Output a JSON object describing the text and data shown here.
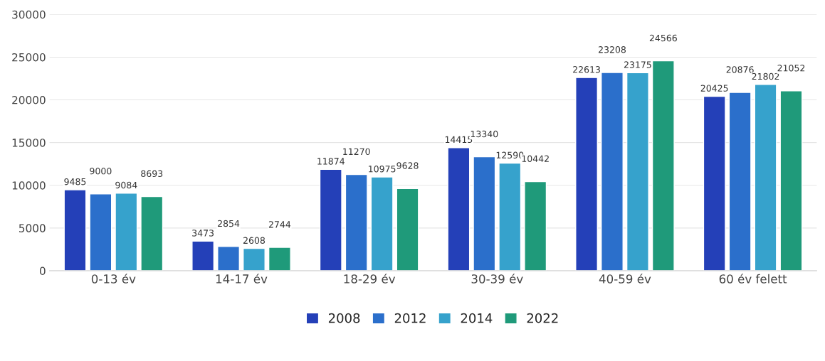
{
  "chart_data": {
    "type": "bar",
    "categories": [
      "0-13 év",
      "14-17 év",
      "18-29 év",
      "30-39 év",
      "40-59 év",
      "60 év felett"
    ],
    "series": [
      {
        "name": "2008",
        "color": "#2440b8",
        "values": [
          9485,
          3473,
          11874,
          14415,
          22613,
          20425
        ]
      },
      {
        "name": "2012",
        "color": "#2b6fcb",
        "values": [
          9000,
          2854,
          11270,
          13340,
          23208,
          20876
        ]
      },
      {
        "name": "2014",
        "color": "#36a2cc",
        "values": [
          9084,
          2608,
          10975,
          12590,
          23175,
          21802
        ]
      },
      {
        "name": "2022",
        "color": "#1f9a7a",
        "values": [
          8693,
          2744,
          9628,
          10442,
          24566,
          21052
        ]
      }
    ],
    "ylim": [
      0,
      30000
    ],
    "yticks": [
      0,
      5000,
      10000,
      15000,
      20000,
      25000,
      30000
    ],
    "grid": "y",
    "legend": "bottom",
    "data_labels": true
  }
}
